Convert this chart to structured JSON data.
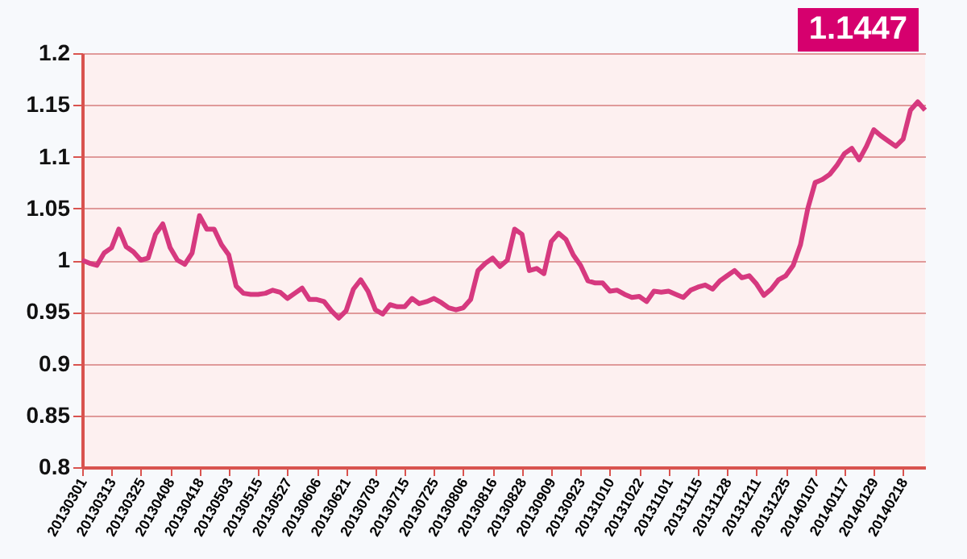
{
  "chart_data": {
    "type": "line",
    "categories": [
      "20130301",
      null,
      null,
      null,
      "20130313",
      null,
      null,
      null,
      "20130325",
      null,
      null,
      null,
      "20130408",
      null,
      null,
      null,
      "20130418",
      null,
      null,
      null,
      "20130503",
      null,
      null,
      null,
      "20130515",
      null,
      null,
      null,
      "20130527",
      null,
      null,
      null,
      "20130606",
      null,
      null,
      null,
      "20130621",
      null,
      null,
      null,
      "20130703",
      null,
      null,
      null,
      "20130715",
      null,
      null,
      null,
      "20130725",
      null,
      null,
      null,
      "20130806",
      null,
      null,
      null,
      "20130816",
      null,
      null,
      null,
      "20130828",
      null,
      null,
      null,
      "20130909",
      null,
      null,
      null,
      "20130923",
      null,
      null,
      null,
      "20131010",
      null,
      null,
      null,
      "20131022",
      null,
      null,
      null,
      "20131101",
      null,
      null,
      null,
      "20131115",
      null,
      null,
      null,
      "20131128",
      null,
      null,
      null,
      "20131211",
      null,
      null,
      null,
      "20131225",
      null,
      null,
      null,
      "20140107",
      null,
      null,
      null,
      "20140117",
      null,
      null,
      null,
      "20140129",
      null,
      null,
      null,
      "20140218",
      null,
      null,
      null
    ],
    "series": [
      {
        "color": "#d6397f",
        "values": [
          1.0,
          0.997,
          0.995,
          1.007,
          1.012,
          1.03,
          1.013,
          1.008,
          1.0,
          1.002,
          1.025,
          1.035,
          1.012,
          1.0,
          0.996,
          1.007,
          1.043,
          1.03,
          1.03,
          1.015,
          1.005,
          0.975,
          0.968,
          0.967,
          0.967,
          0.968,
          0.971,
          0.969,
          0.963,
          0.968,
          0.973,
          0.962,
          0.962,
          0.96,
          0.951,
          0.944,
          0.951,
          0.972,
          0.981,
          0.97,
          0.952,
          0.948,
          0.957,
          0.955,
          0.955,
          0.963,
          0.958,
          0.96,
          0.963,
          0.959,
          0.954,
          0.952,
          0.954,
          0.962,
          0.99,
          0.997,
          1.002,
          0.994,
          1.0,
          1.03,
          1.025,
          0.99,
          0.992,
          0.987,
          1.018,
          1.026,
          1.02,
          1.005,
          0.995,
          0.98,
          0.978,
          0.978,
          0.97,
          0.971,
          0.967,
          0.964,
          0.965,
          0.96,
          0.97,
          0.969,
          0.97,
          0.967,
          0.964,
          0.971,
          0.974,
          0.976,
          0.972,
          0.98,
          0.985,
          0.99,
          0.983,
          0.985,
          0.977,
          0.966,
          0.972,
          0.981,
          0.985,
          0.995,
          1.015,
          1.05,
          1.075,
          1.078,
          1.083,
          1.092,
          1.103,
          1.108,
          1.097,
          1.11,
          1.126,
          1.12,
          1.115,
          1.11,
          1.117,
          1.145,
          1.153,
          1.145
        ]
      }
    ],
    "ylim": [
      0.8,
      1.2
    ],
    "yticks": [
      0.8,
      0.85,
      0.9,
      0.95,
      1,
      1.05,
      1.1,
      1.15,
      1.2
    ],
    "grid": "y",
    "annotations": [
      "1.1447"
    ]
  }
}
